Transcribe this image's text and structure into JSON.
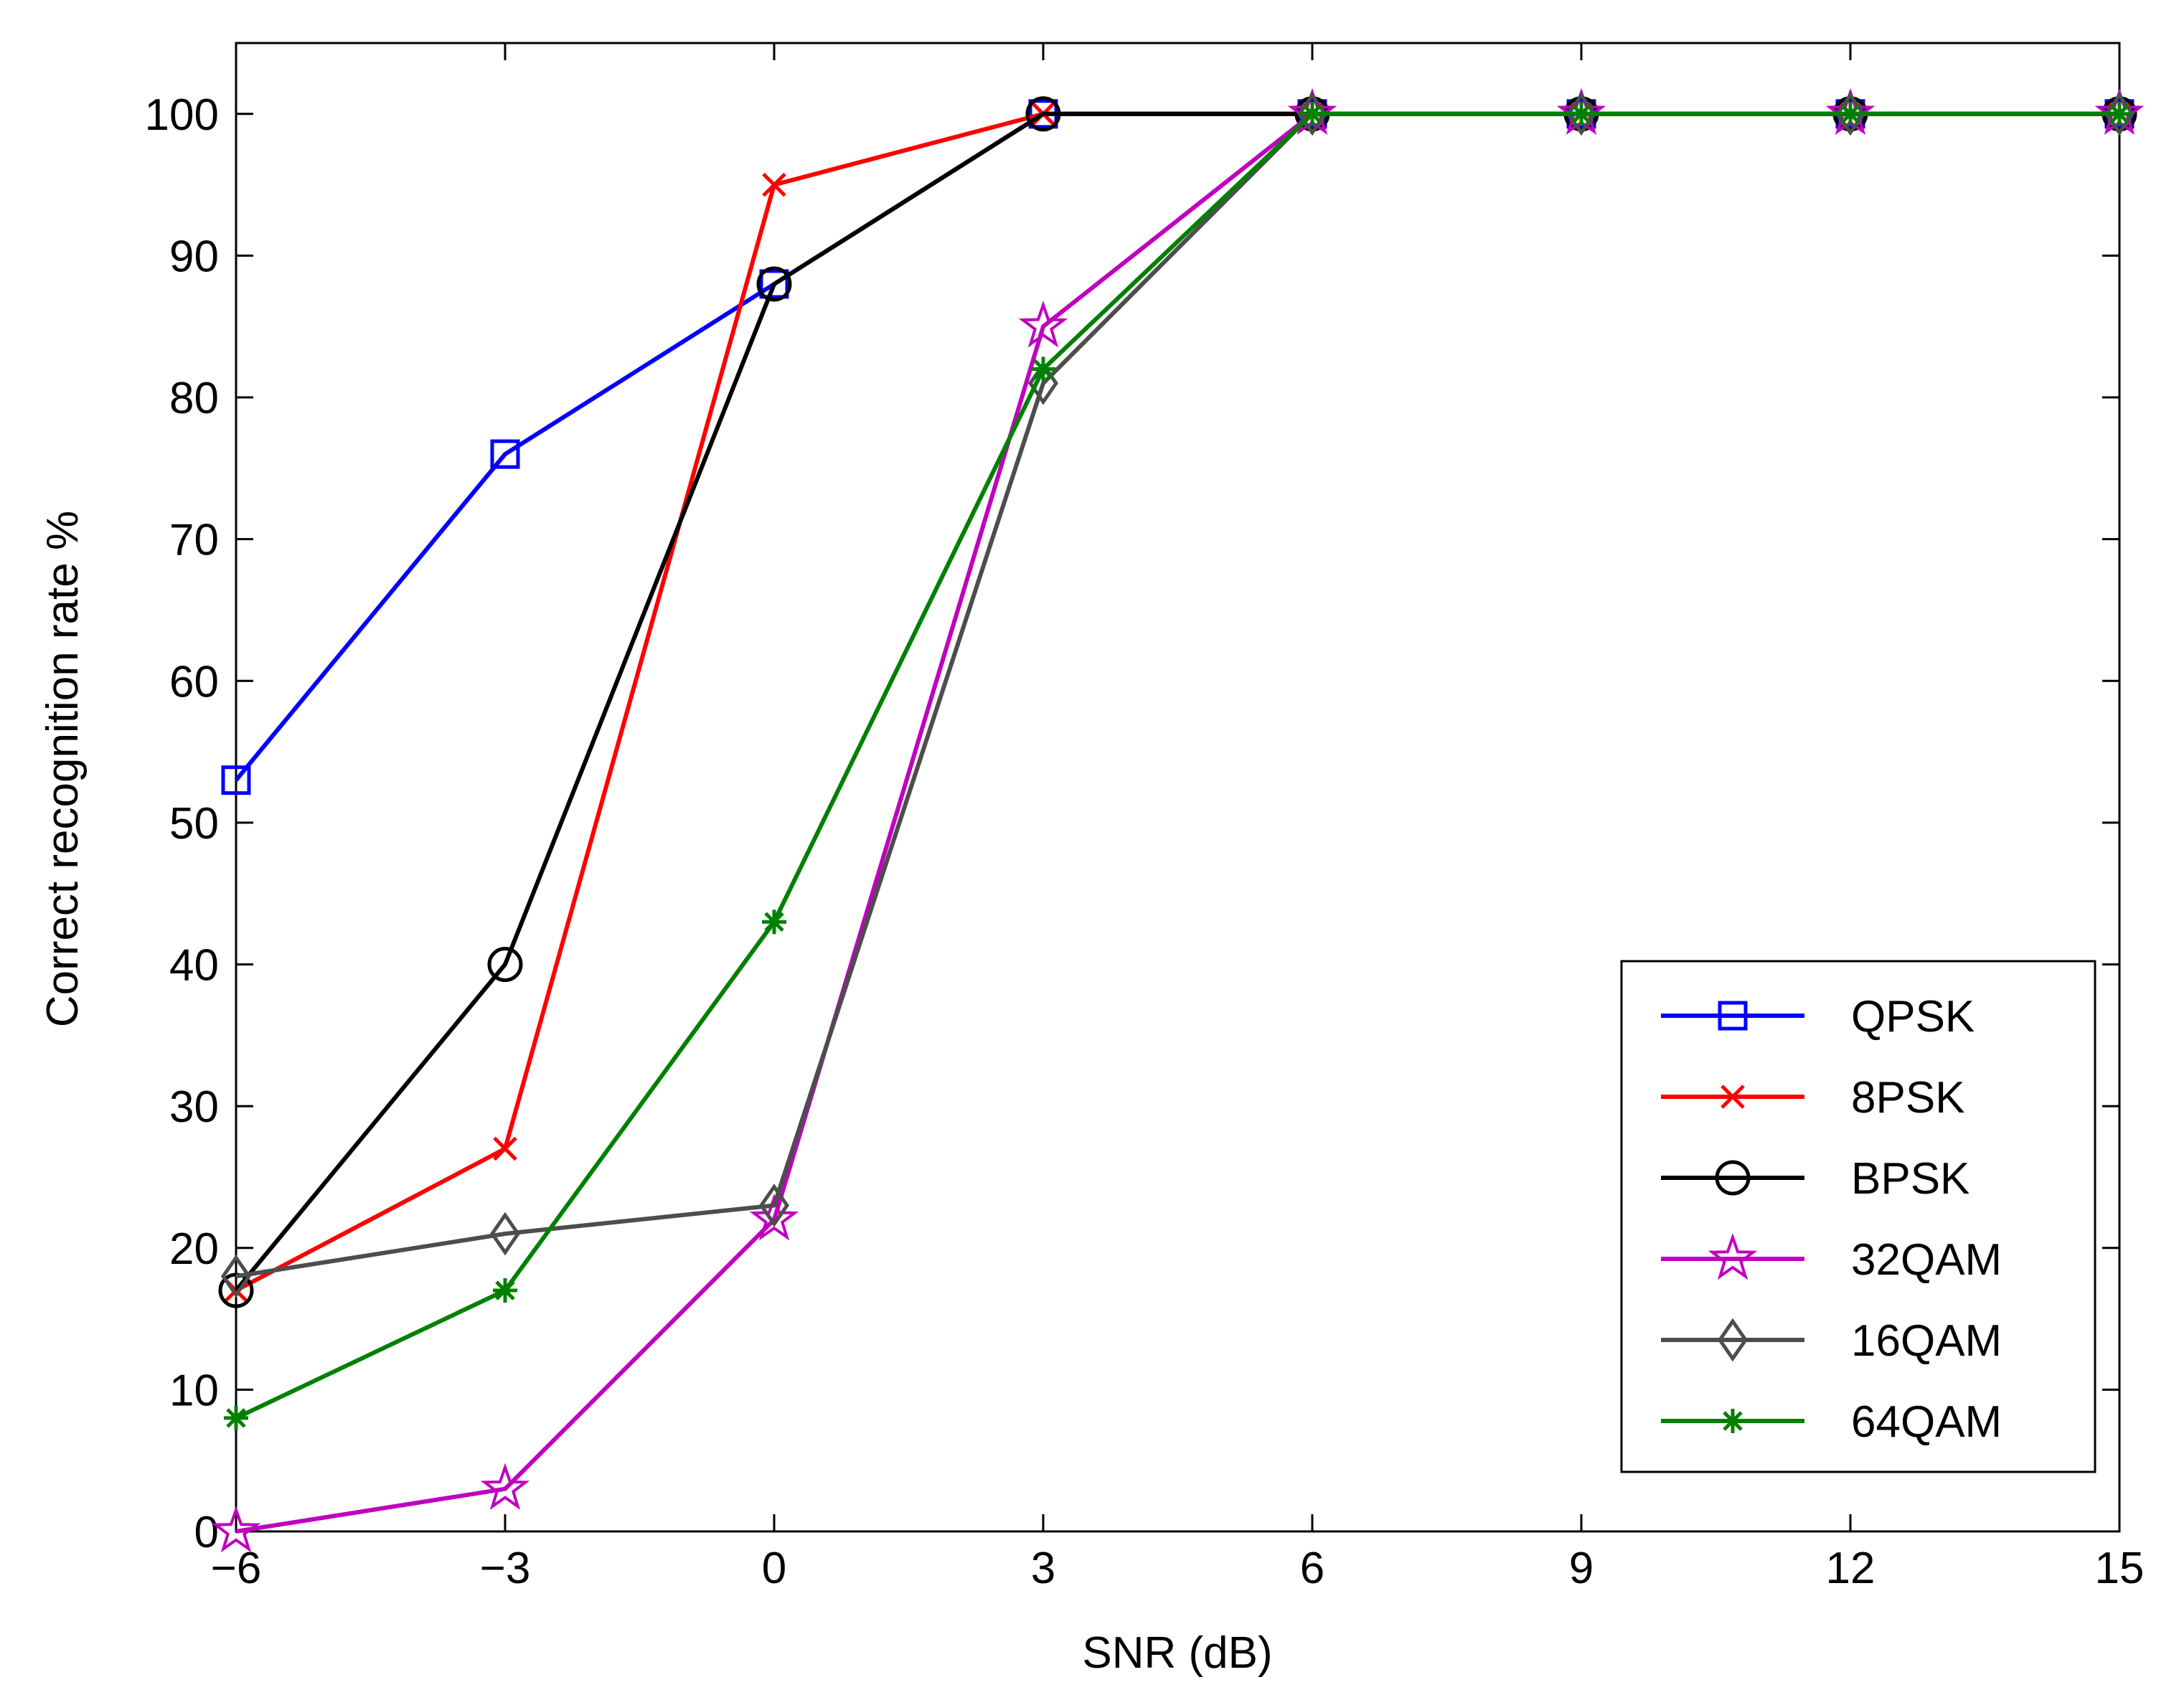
{
  "chart_data": {
    "type": "line",
    "title": "",
    "xlabel": "SNR (dB)",
    "ylabel": "Correct recognition rate %",
    "x": [
      -6,
      -3,
      0,
      3,
      6,
      9,
      12,
      15
    ],
    "x_tick_labels": [
      "−6",
      "−3",
      "0",
      "3",
      "6",
      "9",
      "12",
      "15"
    ],
    "xlim": [
      -6,
      15
    ],
    "y_ticks": [
      0,
      10,
      20,
      30,
      40,
      50,
      60,
      70,
      80,
      90,
      100
    ],
    "y_tick_labels": [
      "0",
      "10",
      "20",
      "30",
      "40",
      "50",
      "60",
      "70",
      "80",
      "90",
      "100"
    ],
    "ylim": [
      0,
      105
    ],
    "grid": false,
    "legend_position": "bottom-right",
    "series": [
      {
        "name": "QPSK",
        "values": [
          53,
          76,
          88,
          100,
          100,
          100,
          100,
          100
        ],
        "color": "#0000ff",
        "marker": "square"
      },
      {
        "name": "8PSK",
        "values": [
          17,
          27,
          95,
          100,
          100,
          100,
          100,
          100
        ],
        "color": "#ff0000",
        "marker": "x"
      },
      {
        "name": "BPSK",
        "values": [
          17,
          40,
          88,
          100,
          100,
          100,
          100,
          100
        ],
        "color": "#000000",
        "marker": "circle"
      },
      {
        "name": "32QAM",
        "values": [
          0,
          3,
          22,
          85,
          100,
          100,
          100,
          100
        ],
        "color": "#bf00bf",
        "marker": "star"
      },
      {
        "name": "16QAM",
        "values": [
          18,
          21,
          23,
          81,
          100,
          100,
          100,
          100
        ],
        "color": "#4d4d4d",
        "marker": "diamond"
      },
      {
        "name": "64QAM",
        "values": [
          8,
          17,
          43,
          82,
          100,
          100,
          100,
          100
        ],
        "color": "#008000",
        "marker": "asterisk"
      }
    ]
  }
}
